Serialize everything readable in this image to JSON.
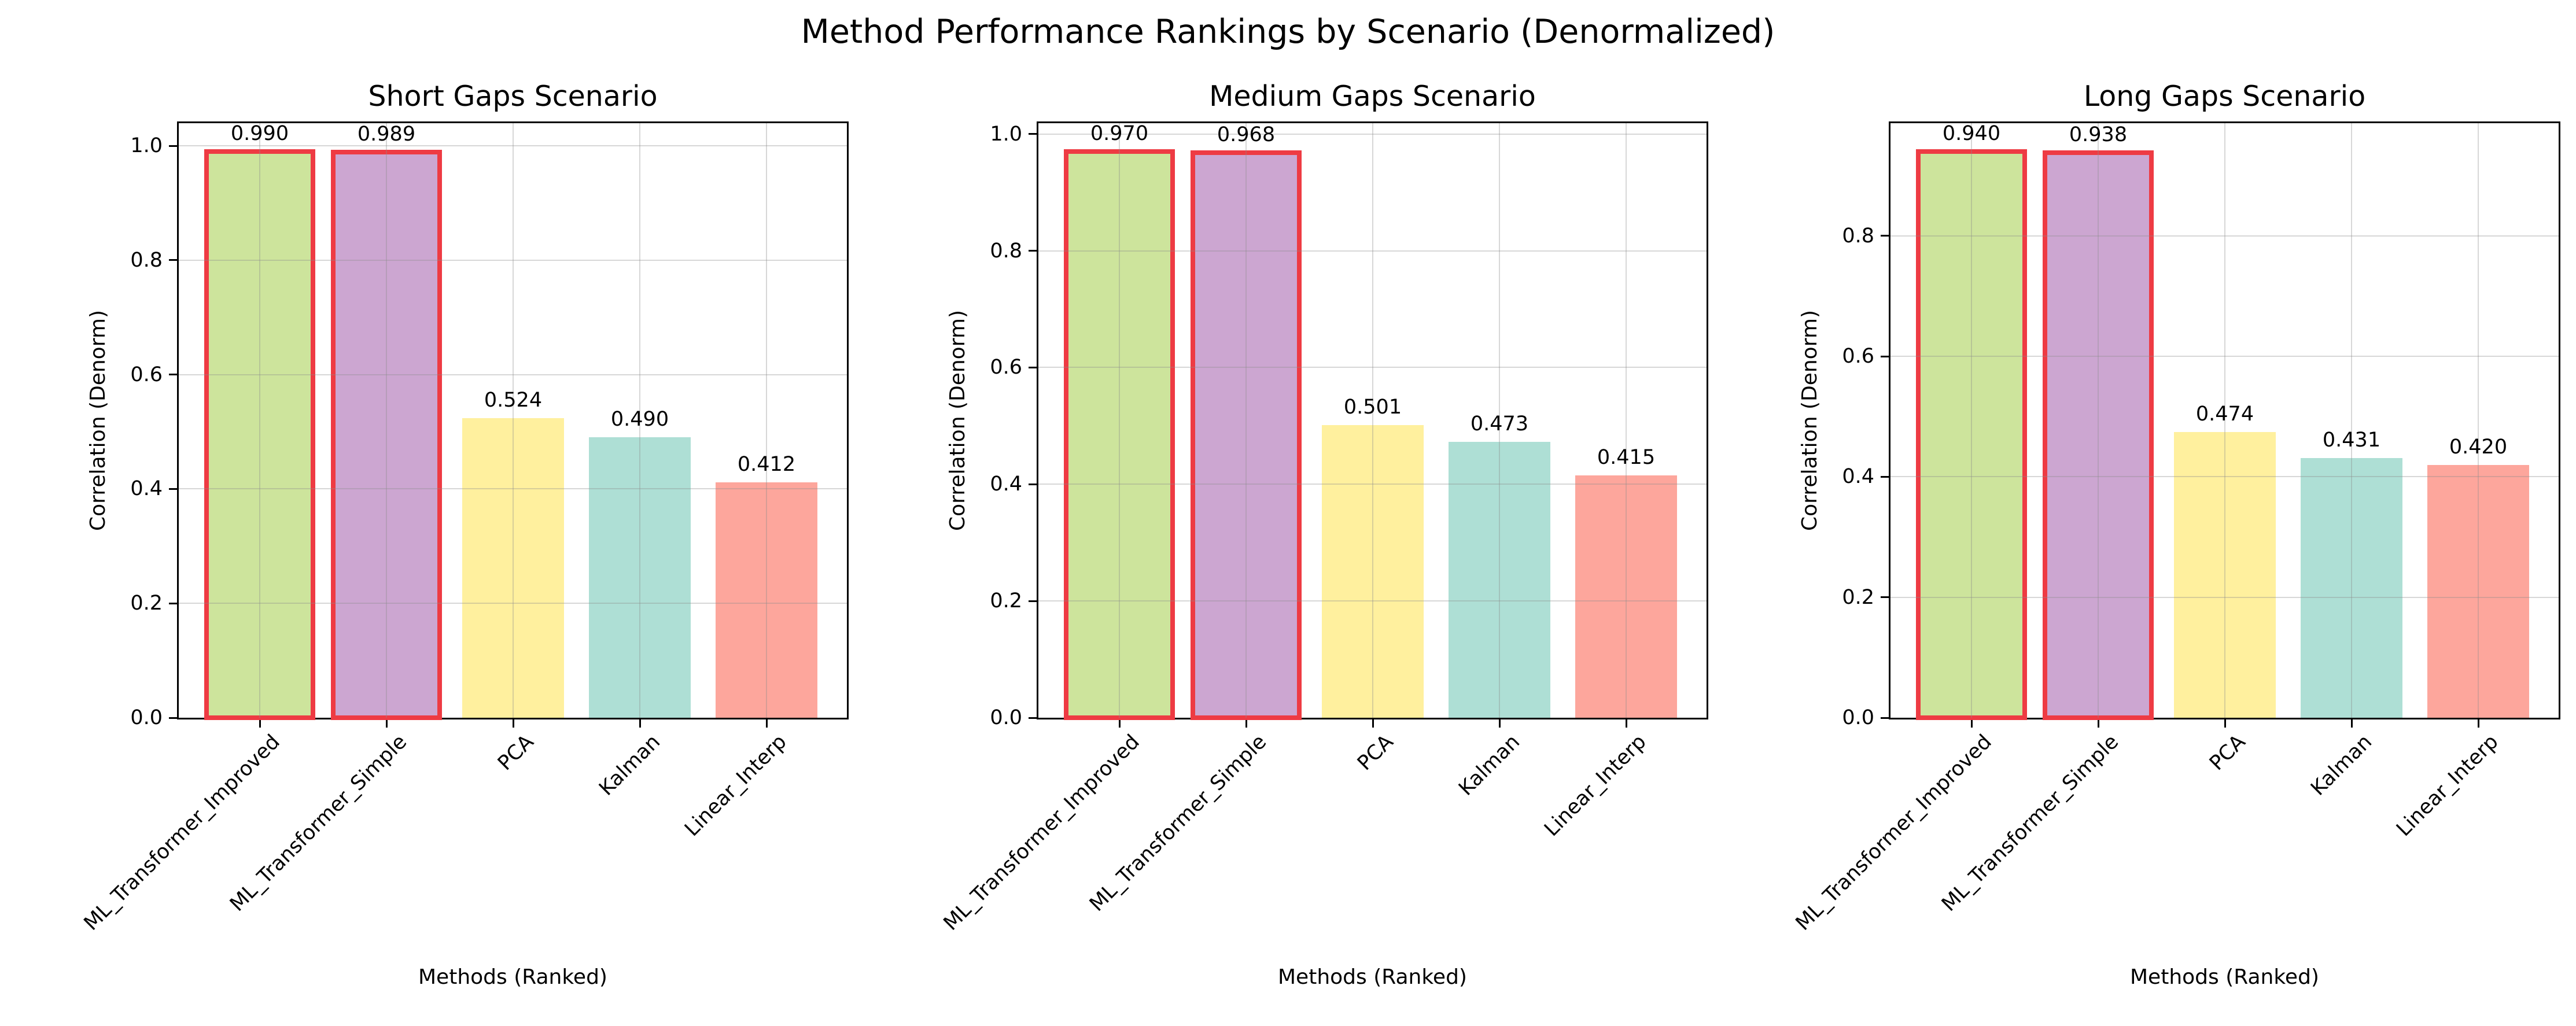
{
  "figure": {
    "suptitle": "Method Performance Rankings by Scenario (Denormalized)"
  },
  "colors": {
    "background": "#ffffff",
    "axis": "#000000",
    "grid": "rgba(140,140,140,0.35)",
    "highlight_edge": "#ee3b43",
    "bar_fills": [
      "#cde49c",
      "#cca6d1",
      "#fff09e",
      "#aedfd5",
      "#fda69c"
    ]
  },
  "chart_data": [
    {
      "type": "bar",
      "title": "Short Gaps Scenario",
      "xlabel": "Methods (Ranked)",
      "ylabel": "Correlation (Denorm)",
      "categories": [
        "ML_Transformer_Improved",
        "ML_Transformer_Simple",
        "PCA",
        "Kalman",
        "Linear_Interp"
      ],
      "values": [
        0.99,
        0.989,
        0.524,
        0.49,
        0.412
      ],
      "value_labels": [
        "0.990",
        "0.989",
        "0.524",
        "0.490",
        "0.412"
      ],
      "highlighted": [
        true,
        true,
        false,
        false,
        false
      ],
      "ylim": [
        0,
        1.0395
      ],
      "yticks": [
        "0.0",
        "0.2",
        "0.4",
        "0.6",
        "0.8",
        "1.0"
      ],
      "grid": true,
      "legend": null
    },
    {
      "type": "bar",
      "title": "Medium Gaps Scenario",
      "xlabel": "Methods (Ranked)",
      "ylabel": "Correlation (Denorm)",
      "categories": [
        "ML_Transformer_Improved",
        "ML_Transformer_Simple",
        "PCA",
        "Kalman",
        "Linear_Interp"
      ],
      "values": [
        0.97,
        0.968,
        0.501,
        0.473,
        0.415
      ],
      "value_labels": [
        "0.970",
        "0.968",
        "0.501",
        "0.473",
        "0.415"
      ],
      "highlighted": [
        true,
        true,
        false,
        false,
        false
      ],
      "ylim": [
        0,
        1.0185
      ],
      "yticks": [
        "0.0",
        "0.2",
        "0.4",
        "0.6",
        "0.8",
        "1.0"
      ],
      "grid": true,
      "legend": null
    },
    {
      "type": "bar",
      "title": "Long Gaps Scenario",
      "xlabel": "Methods (Ranked)",
      "ylabel": "Correlation (Denorm)",
      "categories": [
        "ML_Transformer_Improved",
        "ML_Transformer_Simple",
        "PCA",
        "Kalman",
        "Linear_Interp"
      ],
      "values": [
        0.94,
        0.938,
        0.474,
        0.431,
        0.42
      ],
      "value_labels": [
        "0.940",
        "0.938",
        "0.474",
        "0.431",
        "0.420"
      ],
      "highlighted": [
        true,
        true,
        false,
        false,
        false
      ],
      "ylim": [
        0,
        0.987
      ],
      "yticks": [
        "0.0",
        "0.2",
        "0.4",
        "0.6",
        "0.8"
      ],
      "grid": true,
      "legend": null
    }
  ]
}
